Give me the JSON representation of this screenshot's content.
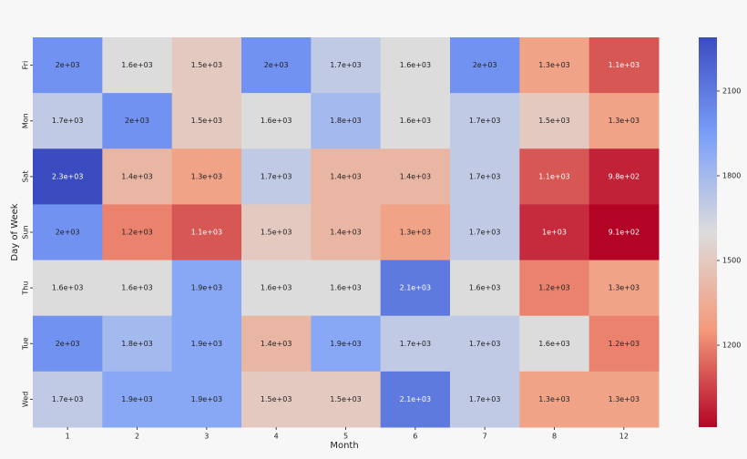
{
  "chart_data": {
    "type": "heatmap",
    "xlabel": "Month",
    "ylabel": "Day of Week",
    "x_categories": [
      "1",
      "2",
      "3",
      "4",
      "5",
      "6",
      "7",
      "8",
      "12"
    ],
    "y_categories": [
      "Fri",
      "Mon",
      "Sat",
      "Sun",
      "Thu",
      "Tue",
      "Wed"
    ],
    "values": [
      [
        2000,
        1600,
        1500,
        2000,
        1700,
        1600,
        2000,
        1300,
        1100
      ],
      [
        1700,
        2000,
        1500,
        1600,
        1800,
        1600,
        1700,
        1500,
        1300
      ],
      [
        2300,
        1400,
        1300,
        1700,
        1400,
        1400,
        1700,
        1100,
        980
      ],
      [
        2000,
        1200,
        1100,
        1500,
        1400,
        1300,
        1700,
        1000,
        910
      ],
      [
        1600,
        1600,
        1900,
        1600,
        1600,
        2100,
        1600,
        1200,
        1300
      ],
      [
        2000,
        1800,
        1900,
        1400,
        1900,
        1700,
        1700,
        1600,
        1200
      ],
      [
        1700,
        1900,
        1900,
        1500,
        1500,
        2100,
        1700,
        1300,
        1300
      ]
    ],
    "value_labels": [
      [
        "2e+03",
        "1.6e+03",
        "1.5e+03",
        "2e+03",
        "1.7e+03",
        "1.6e+03",
        "2e+03",
        "1.3e+03",
        "1.1e+03"
      ],
      [
        "1.7e+03",
        "2e+03",
        "1.5e+03",
        "1.6e+03",
        "1.8e+03",
        "1.6e+03",
        "1.7e+03",
        "1.5e+03",
        "1.3e+03"
      ],
      [
        "2.3e+03",
        "1.4e+03",
        "1.3e+03",
        "1.7e+03",
        "1.4e+03",
        "1.4e+03",
        "1.7e+03",
        "1.1e+03",
        "9.8e+02"
      ],
      [
        "2e+03",
        "1.2e+03",
        "1.1e+03",
        "1.5e+03",
        "1.4e+03",
        "1.3e+03",
        "1.7e+03",
        "1e+03",
        "9.1e+02"
      ],
      [
        "1.6e+03",
        "1.6e+03",
        "1.9e+03",
        "1.6e+03",
        "1.6e+03",
        "2.1e+03",
        "1.6e+03",
        "1.2e+03",
        "1.3e+03"
      ],
      [
        "2e+03",
        "1.8e+03",
        "1.9e+03",
        "1.4e+03",
        "1.9e+03",
        "1.7e+03",
        "1.7e+03",
        "1.6e+03",
        "1.2e+03"
      ],
      [
        "1.7e+03",
        "1.9e+03",
        "1.9e+03",
        "1.5e+03",
        "1.5e+03",
        "2.1e+03",
        "1.7e+03",
        "1.3e+03",
        "1.3e+03"
      ]
    ],
    "zlim": [
      910,
      2290
    ],
    "zticks": [
      1200,
      1500,
      1800,
      2100
    ],
    "colorscale": [
      "#b40426",
      "#f49a7b",
      "#dddcdc",
      "#7b9ff9",
      "#3b4cc0"
    ]
  }
}
